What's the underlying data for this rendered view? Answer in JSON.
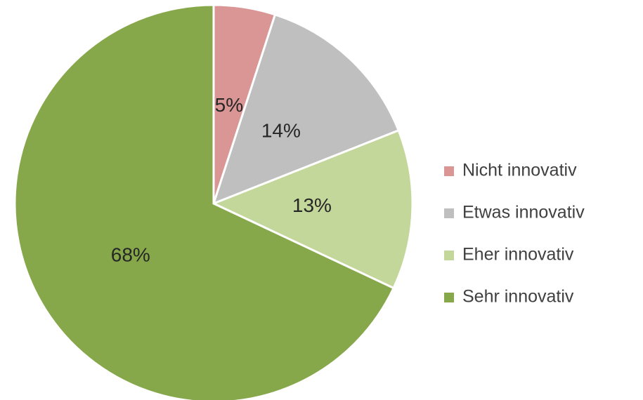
{
  "chart_data": {
    "type": "pie",
    "categories": [
      "Nicht innovativ",
      "Etwas innovativ",
      "Eher innovativ",
      "Sehr innovativ"
    ],
    "values": [
      5,
      14,
      13,
      68
    ],
    "value_labels": [
      "5%",
      "14%",
      "13%",
      "68%"
    ],
    "colors": [
      "#d99694",
      "#bfbfbf",
      "#c4d79b",
      "#86a84a"
    ],
    "legend": "right"
  }
}
